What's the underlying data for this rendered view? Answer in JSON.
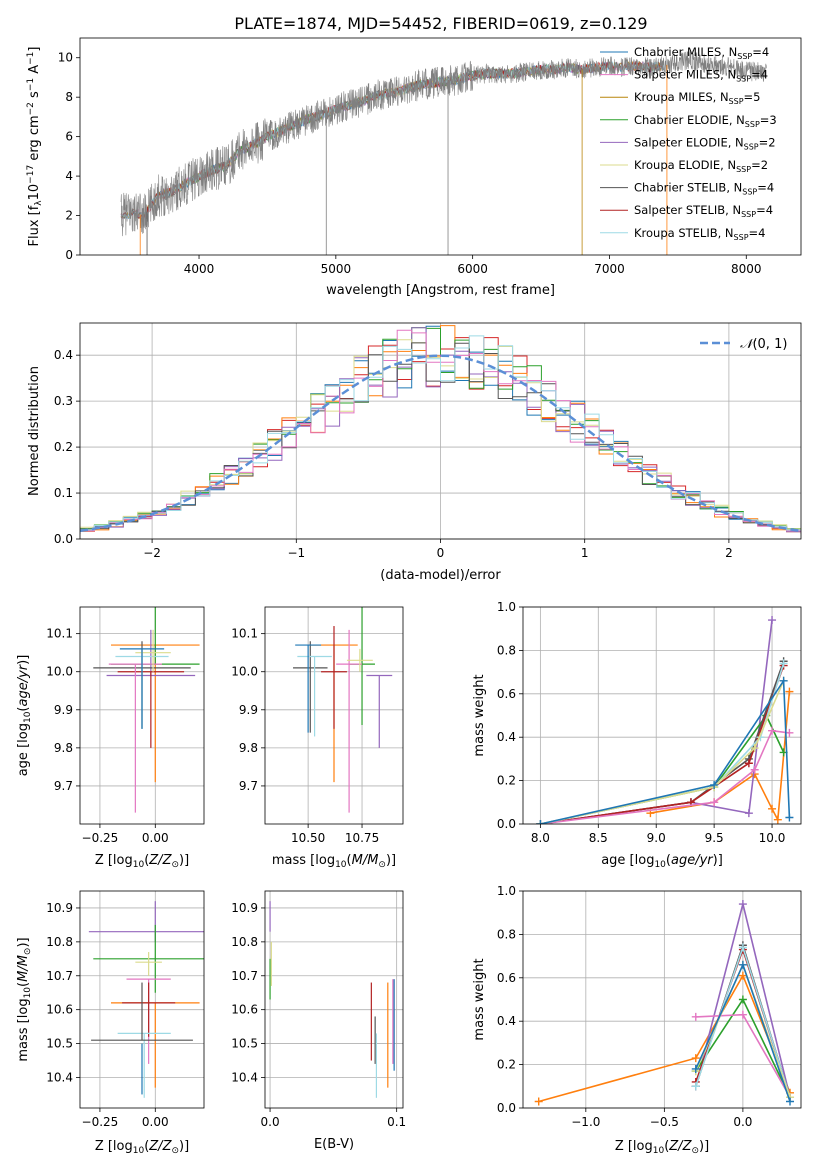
{
  "figure": {
    "title": "PLATE=1874, MJD=54452, FIBERID=0619, z=0.129"
  },
  "chart_data": [
    {
      "id": "spectrum",
      "type": "line",
      "xlabel": "wavelength [Angstrom, rest frame]",
      "ylabel": "Flux [f_λ 10^-17 erg cm^-2 s^-1 A^-1]",
      "xlim": [
        3130,
        8400
      ],
      "ylim": [
        0,
        11
      ],
      "xticks": [
        4000,
        5000,
        6000,
        7000,
        8000
      ],
      "yticks": [
        0,
        2,
        4,
        6,
        8,
        10
      ],
      "legend_position": "top-right",
      "data_series": {
        "name": "",
        "color": "#808080",
        "x": [
          3430,
          3500,
          3600,
          3700,
          3800,
          3900,
          4000,
          4100,
          4200,
          4300,
          4400,
          4500,
          4600,
          4700,
          4800,
          4900,
          5000,
          5100,
          5200,
          5300,
          5400,
          5500,
          5600,
          5700,
          5800,
          5900,
          6000,
          6100,
          6200,
          6300,
          6400,
          6500,
          6600,
          6700,
          6800,
          6900,
          7000,
          7100,
          7200,
          7300,
          7400,
          7500,
          7600,
          7700,
          7800,
          7900,
          8000,
          8100,
          8150
        ],
        "y": [
          2.0,
          2.2,
          2.0,
          3.0,
          3.2,
          3.6,
          4.0,
          4.3,
          4.5,
          5.3,
          5.6,
          6.0,
          6.3,
          6.6,
          6.9,
          7.1,
          7.4,
          7.6,
          7.8,
          8.1,
          8.2,
          8.4,
          8.6,
          8.7,
          8.8,
          8.9,
          9.1,
          9.2,
          9.2,
          9.2,
          9.3,
          9.4,
          9.4,
          9.5,
          9.4,
          9.5,
          9.6,
          9.5,
          9.6,
          9.5,
          9.6,
          9.8,
          9.9,
          9.7,
          9.6,
          9.5,
          9.3,
          9.3,
          9.2
        ]
      },
      "model_series": [
        {
          "name": "Chabrier MILES, N_SSP=4",
          "label_main": "Chabrier MILES, N",
          "label_sub": "SSP",
          "label_tail": "=4",
          "color": "#1f77b4",
          "x_range": [
            3430,
            7400
          ]
        },
        {
          "name": "Salpeter MILES, N_SSP=4",
          "label_main": "Salpeter MILES, N",
          "label_sub": "SSP",
          "label_tail": "=4",
          "color": "#e377c2",
          "x_range": [
            3430,
            7400
          ]
        },
        {
          "name": "Kroupa MILES, N_SSP=5",
          "label_main": "Kroupa MILES, N",
          "label_sub": "SSP",
          "label_tail": "=5",
          "color": "#b8860b",
          "x_range": [
            3430,
            7400
          ]
        },
        {
          "name": "Chabrier ELODIE, N_SSP=3",
          "label_main": "Chabrier ELODIE, N",
          "label_sub": "SSP",
          "label_tail": "=3",
          "color": "#2ca02c",
          "x_range": [
            3950,
            6800
          ]
        },
        {
          "name": "Salpeter ELODIE, N_SSP=2",
          "label_main": "Salpeter ELODIE, N",
          "label_sub": "SSP",
          "label_tail": "=2",
          "color": "#9467bd",
          "x_range": [
            3950,
            6800
          ]
        },
        {
          "name": "Kroupa ELODIE, N_SSP=2",
          "label_main": "Kroupa ELODIE, N",
          "label_sub": "SSP",
          "label_tail": "=2",
          "color": "#dbdb8d",
          "x_range": [
            3950,
            6800
          ]
        },
        {
          "name": "Chabrier STELIB, N_SSP=4",
          "label_main": "Chabrier STELIB, N",
          "label_sub": "SSP",
          "label_tail": "=4",
          "color": "#555555",
          "x_range": [
            3430,
            7400
          ]
        },
        {
          "name": "Salpeter STELIB, N_SSP=4",
          "label_main": "Salpeter STELIB, N",
          "label_sub": "SSP",
          "label_tail": "=4",
          "color": "#b22222",
          "x_range": [
            3430,
            7400
          ]
        },
        {
          "name": "Kroupa STELIB, N_SSP=4",
          "label_main": "Kroupa STELIB, N",
          "label_sub": "SSP",
          "label_tail": "=4",
          "color": "#9edae5",
          "x_range": [
            3430,
            7400
          ]
        }
      ]
    },
    {
      "id": "residuals",
      "type": "line",
      "xlabel": "(data-model)/error",
      "ylabel": "Normed distribution",
      "xlim": [
        -2.5,
        2.5
      ],
      "ylim": [
        0,
        0.47
      ],
      "xticks": [
        -2,
        -1,
        0,
        1,
        2
      ],
      "yticks": [
        0.0,
        0.1,
        0.2,
        0.3,
        0.4
      ],
      "grid": true,
      "legend": "N(0,1)",
      "legend_position": "top-right",
      "bin_edges_step": 0.1,
      "series": [
        {
          "color": "#d62728",
          "offset": 0.0
        },
        {
          "color": "#1f77b4",
          "offset": 0.01
        },
        {
          "color": "#ff7f0e",
          "offset": -0.01
        },
        {
          "color": "#2ca02c",
          "offset": 0.015
        },
        {
          "color": "#9467bd",
          "offset": -0.015
        },
        {
          "color": "#dbdb8d",
          "offset": 0.02
        },
        {
          "color": "#555555",
          "offset": -0.005
        },
        {
          "color": "#e377c2",
          "offset": 0.005
        },
        {
          "color": "#9edae5",
          "offset": 0.012
        }
      ],
      "gaussian": {
        "color": "#5b8fd6",
        "mean": 0,
        "sigma": 1
      }
    },
    {
      "id": "age_vs_Z",
      "type": "scatter",
      "xlabel": "Z [log10(Z/Z☉)]",
      "ylabel": "age [log10(age/yr)]",
      "xlim": [
        -0.34,
        0.22
      ],
      "ylim": [
        9.6,
        10.17
      ],
      "xticks": [
        -0.25,
        0.0
      ],
      "yticks": [
        9.7,
        9.8,
        9.9,
        10.0,
        10.1
      ],
      "points": [
        {
          "color": "#ff7f0e",
          "x": 0.0,
          "y": 10.07,
          "xerr": 0.2,
          "yerr": [
            0.36,
            0.0
          ]
        },
        {
          "color": "#9467bd",
          "x": -0.02,
          "y": 9.99,
          "xerr": 0.2,
          "yerr": [
            0.0,
            0.12
          ]
        },
        {
          "color": "#2ca02c",
          "x": 0.0,
          "y": 10.02,
          "xerr": 0.2,
          "yerr": [
            0.0,
            0.15
          ]
        },
        {
          "color": "#555555",
          "x": -0.06,
          "y": 10.01,
          "xerr": 0.22,
          "yerr": [
            0.16,
            0.07
          ]
        },
        {
          "color": "#b22222",
          "x": -0.02,
          "y": 10.0,
          "xerr": 0.15,
          "yerr": [
            0.2,
            0.0
          ]
        },
        {
          "color": "#e377c2",
          "x": -0.09,
          "y": 10.02,
          "xerr": 0.12,
          "yerr": [
            0.39,
            0.0
          ]
        },
        {
          "color": "#9edae5",
          "x": -0.06,
          "y": 10.04,
          "xerr": 0.12,
          "yerr": [
            0.19,
            0.0
          ]
        },
        {
          "color": "#dbdb8d",
          "x": -0.01,
          "y": 10.05,
          "xerr": 0.08,
          "yerr": [
            0.05,
            0.06
          ]
        },
        {
          "color": "#1f77b4",
          "x": -0.06,
          "y": 10.06,
          "xerr": 0.1,
          "yerr": [
            0.21,
            0.0
          ]
        }
      ]
    },
    {
      "id": "age_vs_mass",
      "type": "scatter",
      "xlabel": "mass [log10(M/M☉)]",
      "ylabel": "",
      "xlim": [
        10.3,
        10.94
      ],
      "ylim": [
        9.6,
        10.17
      ],
      "xticks": [
        10.5,
        10.75
      ],
      "yticks": [
        9.7,
        9.8,
        9.9,
        10.0,
        10.1
      ],
      "points": [
        {
          "color": "#ff7f0e",
          "x": 10.62,
          "y": 10.07,
          "xerr": 0.11,
          "yerr": [
            0.36,
            0.0
          ]
        },
        {
          "color": "#9467bd",
          "x": 10.83,
          "y": 9.99,
          "xerr": 0.06,
          "yerr": [
            0.19,
            0.0
          ]
        },
        {
          "color": "#2ca02c",
          "x": 10.75,
          "y": 10.02,
          "xerr": 0.06,
          "yerr": [
            0.16,
            0.15
          ]
        },
        {
          "color": "#555555",
          "x": 10.51,
          "y": 10.01,
          "xerr": 0.08,
          "yerr": [
            0.17,
            0.07
          ]
        },
        {
          "color": "#b22222",
          "x": 10.62,
          "y": 10.0,
          "xerr": 0.06,
          "yerr": [
            0.15,
            0.12
          ]
        },
        {
          "color": "#e377c2",
          "x": 10.69,
          "y": 10.02,
          "xerr": 0.06,
          "yerr": [
            0.39,
            0.09
          ]
        },
        {
          "color": "#9edae5",
          "x": 10.53,
          "y": 10.04,
          "xerr": 0.08,
          "yerr": [
            0.21,
            0.0
          ]
        },
        {
          "color": "#dbdb8d",
          "x": 10.74,
          "y": 10.03,
          "xerr": 0.06,
          "yerr": [
            0.03,
            0.03
          ]
        },
        {
          "color": "#1f77b4",
          "x": 10.5,
          "y": 10.07,
          "xerr": 0.06,
          "yerr": [
            0.23,
            0.0
          ]
        }
      ]
    },
    {
      "id": "mass_weight_vs_age",
      "type": "line",
      "xlabel": "age [log10(age/yr)]",
      "ylabel": "mass weight",
      "xlim": [
        7.85,
        10.25
      ],
      "ylim": [
        0,
        1.0
      ],
      "xticks": [
        8.0,
        8.5,
        9.0,
        9.5,
        10.0
      ],
      "yticks": [
        0.0,
        0.2,
        0.4,
        0.6,
        0.8,
        1.0
      ],
      "series": [
        {
          "color": "#ff7f0e",
          "x": [
            8.95,
            9.5,
            9.85,
            10.0,
            10.05,
            10.15
          ],
          "y": [
            0.05,
            0.1,
            0.23,
            0.07,
            0.02,
            0.61
          ]
        },
        {
          "color": "#9467bd",
          "x": [
            8.0,
            9.3,
            9.8,
            10.0
          ],
          "y": [
            0.0,
            0.1,
            0.05,
            0.94
          ]
        },
        {
          "color": "#2ca02c",
          "x": [
            8.0,
            9.5,
            9.95,
            10.1
          ],
          "y": [
            0.0,
            0.17,
            0.5,
            0.33
          ]
        },
        {
          "color": "#555555",
          "x": [
            8.0,
            9.3,
            9.8,
            10.1
          ],
          "y": [
            0.0,
            0.1,
            0.3,
            0.75
          ]
        },
        {
          "color": "#b22222",
          "x": [
            8.0,
            9.3,
            9.8,
            10.1
          ],
          "y": [
            0.0,
            0.1,
            0.28,
            0.73
          ]
        },
        {
          "color": "#e377c2",
          "x": [
            8.0,
            9.5,
            9.85,
            10.0,
            10.15
          ],
          "y": [
            0.0,
            0.1,
            0.25,
            0.43,
            0.42
          ]
        },
        {
          "color": "#9edae5",
          "x": [
            8.0,
            9.5,
            9.9,
            10.1
          ],
          "y": [
            0.0,
            0.17,
            0.4,
            0.74
          ]
        },
        {
          "color": "#dbdb8d",
          "x": [
            8.0,
            9.5,
            9.85,
            10.1
          ],
          "y": [
            0.0,
            0.17,
            0.35,
            0.66
          ]
        },
        {
          "color": "#1f77b4",
          "x": [
            8.0,
            9.5,
            10.1,
            10.15
          ],
          "y": [
            0.0,
            0.18,
            0.66,
            0.03
          ]
        }
      ]
    },
    {
      "id": "mass_vs_Z",
      "type": "scatter",
      "xlabel": "Z [log10(Z/Z☉)]",
      "ylabel": "mass [log10(M/M☉)]",
      "xlim": [
        -0.34,
        0.22
      ],
      "ylim": [
        10.31,
        10.95
      ],
      "xticks": [
        -0.25,
        0.0
      ],
      "yticks": [
        10.4,
        10.5,
        10.6,
        10.7,
        10.8,
        10.9
      ],
      "points": [
        {
          "color": "#9467bd",
          "x": 0.0,
          "y": 10.83,
          "xerr": 0.3,
          "yerr": [
            0.03,
            0.09
          ]
        },
        {
          "color": "#2ca02c",
          "x": 0.0,
          "y": 10.75,
          "xerr": 0.28,
          "yerr": [
            0.1,
            0.1
          ]
        },
        {
          "color": "#dbdb8d",
          "x": -0.03,
          "y": 10.74,
          "xerr": 0.06,
          "yerr": [
            0.04,
            0.03
          ]
        },
        {
          "color": "#e377c2",
          "x": -0.03,
          "y": 10.69,
          "xerr": 0.1,
          "yerr": [
            0.25,
            0.0
          ]
        },
        {
          "color": "#ff7f0e",
          "x": 0.0,
          "y": 10.62,
          "xerr": 0.2,
          "yerr": [
            0.25,
            0.0
          ]
        },
        {
          "color": "#b22222",
          "x": -0.03,
          "y": 10.62,
          "xerr": 0.12,
          "yerr": [
            0.1,
            0.06
          ]
        },
        {
          "color": "#9edae5",
          "x": -0.05,
          "y": 10.53,
          "xerr": 0.12,
          "yerr": [
            0.19,
            0.0
          ]
        },
        {
          "color": "#555555",
          "x": -0.06,
          "y": 10.51,
          "xerr": 0.23,
          "yerr": [
            0.0,
            0.17
          ]
        },
        {
          "color": "#1f77b4",
          "x": -0.06,
          "y": 10.5,
          "xerr": 0.0,
          "yerr": [
            0.15,
            0.0
          ]
        }
      ]
    },
    {
      "id": "mass_vs_ebv",
      "type": "scatter",
      "xlabel": "E(B-V)",
      "ylabel": "",
      "xlim": [
        -0.004,
        0.105
      ],
      "ylim": [
        10.31,
        10.95
      ],
      "xticks": [
        0.0,
        0.1
      ],
      "yticks": [
        10.4,
        10.5,
        10.6,
        10.7,
        10.8,
        10.9
      ],
      "points": [
        {
          "color": "#9467bd",
          "x": 0.0,
          "y": 10.83,
          "yerr": [
            0.0,
            0.09
          ]
        },
        {
          "color": "#2ca02c",
          "x": 0.0,
          "y": 10.75,
          "yerr": [
            0.12,
            0.0
          ]
        },
        {
          "color": "#dbdb8d",
          "x": 0.001,
          "y": 10.74,
          "yerr": [
            0.07,
            0.06
          ]
        },
        {
          "color": "#b22222",
          "x": 0.08,
          "y": 10.62,
          "yerr": [
            0.17,
            0.06
          ]
        },
        {
          "color": "#555555",
          "x": 0.083,
          "y": 10.51,
          "yerr": [
            0.07,
            0.07
          ]
        },
        {
          "color": "#9edae5",
          "x": 0.084,
          "y": 10.53,
          "yerr": [
            0.19,
            0.0
          ]
        },
        {
          "color": "#ff7f0e",
          "x": 0.093,
          "y": 10.62,
          "yerr": [
            0.25,
            0.06
          ]
        },
        {
          "color": "#e377c2",
          "x": 0.097,
          "y": 10.69,
          "yerr": [
            0.25,
            0.0
          ]
        },
        {
          "color": "#1f77b4",
          "x": 0.098,
          "y": 10.5,
          "yerr": [
            0.08,
            0.19
          ]
        }
      ]
    },
    {
      "id": "mass_weight_vs_Z",
      "type": "line",
      "xlabel": "Z [log10(Z/Z☉)]",
      "ylabel": "mass weight",
      "xlim": [
        -1.4,
        0.37
      ],
      "ylim": [
        0,
        1.0
      ],
      "xticks": [
        -1.0,
        -0.5,
        0.0
      ],
      "yticks": [
        0.0,
        0.2,
        0.4,
        0.6,
        0.8,
        1.0
      ],
      "series": [
        {
          "color": "#ff7f0e",
          "x": [
            -1.3,
            -0.3,
            0.0,
            0.3
          ],
          "y": [
            0.03,
            0.23,
            0.61,
            0.07
          ]
        },
        {
          "color": "#9467bd",
          "x": [
            -0.3,
            0.0,
            0.3
          ],
          "y": [
            0.1,
            0.94,
            0.05
          ]
        },
        {
          "color": "#2ca02c",
          "x": [
            -0.3,
            0.0,
            0.3
          ],
          "y": [
            0.17,
            0.5,
            0.05
          ]
        },
        {
          "color": "#555555",
          "x": [
            -0.3,
            0.0,
            0.3
          ],
          "y": [
            0.1,
            0.75,
            0.05
          ]
        },
        {
          "color": "#b22222",
          "x": [
            -0.3,
            0.0,
            0.3
          ],
          "y": [
            0.12,
            0.73,
            0.05
          ]
        },
        {
          "color": "#e377c2",
          "x": [
            -0.3,
            0.0,
            0.3
          ],
          "y": [
            0.42,
            0.43,
            0.05
          ]
        },
        {
          "color": "#9edae5",
          "x": [
            -0.3,
            0.0,
            0.3
          ],
          "y": [
            0.1,
            0.74,
            0.05
          ]
        },
        {
          "color": "#dbdb8d",
          "x": [
            -0.3,
            0.0,
            0.3
          ],
          "y": [
            0.17,
            0.66,
            0.05
          ]
        },
        {
          "color": "#1f77b4",
          "x": [
            -0.3,
            0.0,
            0.3
          ],
          "y": [
            0.18,
            0.66,
            0.03
          ]
        }
      ]
    }
  ]
}
